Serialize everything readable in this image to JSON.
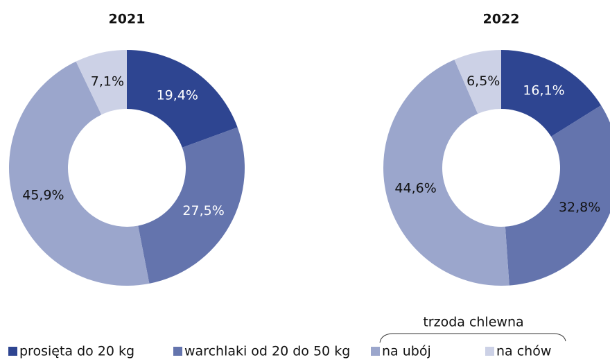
{
  "chart_data": [
    {
      "type": "pie",
      "title": "2021",
      "values": [
        19.4,
        27.5,
        45.9,
        7.1
      ],
      "value_labels": [
        "19,4%",
        "27,5%",
        "45,9%",
        "7,1%"
      ],
      "label_colors": [
        "#ffffff",
        "#ffffff",
        "#111111",
        "#111111"
      ]
    },
    {
      "type": "pie",
      "title": "2022",
      "values": [
        16.1,
        32.8,
        44.6,
        6.5
      ],
      "value_labels": [
        "16,1%",
        "32,8%",
        "44,6%",
        "6,5%"
      ],
      "label_colors": [
        "#ffffff",
        "#111111",
        "#111111",
        "#111111"
      ]
    }
  ],
  "legend": {
    "categories": [
      "prosięta do 20 kg",
      "warchlaki od 20 do 50 kg",
      "na ubój",
      "na chów"
    ],
    "colors": [
      "#2e4591",
      "#6474ad",
      "#9ba6cc",
      "#ccd1e6"
    ],
    "group_label": "trzoda chlewna"
  }
}
